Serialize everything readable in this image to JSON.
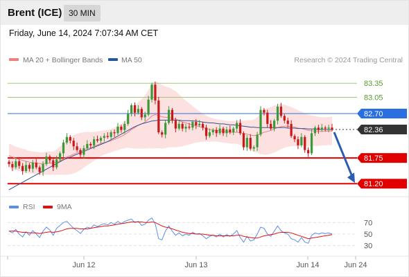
{
  "header": {
    "instrument": "Brent (ICE)",
    "timeframe": "30 MIN"
  },
  "timestamp": "Friday, June 14, 2024 7:07:34 AM CET",
  "legend": {
    "ma20_label": "MA 20 + Bollinger Bands",
    "ma50_label": "MA 50",
    "source": "Research © 2024 Trading Central"
  },
  "colors": {
    "ma20": "#f08080",
    "ma50": "#2a5599",
    "band_fill": "#fde0e0",
    "up_candle": "#3a9a3a",
    "down_candle": "#c81818",
    "resistance": "#9bcb76",
    "pivot": "#2a6fe0",
    "support": "#e00000",
    "last_price": "#333333",
    "rsi": "#5b8fe6",
    "rsi_ma": "#e01010"
  },
  "chart_data": {
    "type": "candlestick",
    "x_ticks": [
      "Jun 12",
      "Jun 13",
      "Jun 14",
      "Jun 24"
    ],
    "y_range": [
      81.04,
      83.62
    ],
    "levels": [
      {
        "label": "83.35",
        "value": 83.35,
        "kind": "resistance"
      },
      {
        "label": "83.05",
        "value": 83.05,
        "kind": "resistance"
      },
      {
        "label": "82.70",
        "value": 82.7,
        "kind": "pivot"
      },
      {
        "label": "82.36",
        "value": 82.36,
        "kind": "last"
      },
      {
        "label": "81.75",
        "value": 81.75,
        "kind": "support"
      },
      {
        "label": "81.20",
        "value": 81.2,
        "kind": "support"
      }
    ],
    "close": [
      81.62,
      81.55,
      81.68,
      81.58,
      81.47,
      81.6,
      81.52,
      81.65,
      81.55,
      81.45,
      81.62,
      81.78,
      81.7,
      81.55,
      81.72,
      81.85,
      82.08,
      82.2,
      82.12,
      82.0,
      81.92,
      81.82,
      81.96,
      82.05,
      82.02,
      82.15,
      82.12,
      82.18,
      82.22,
      82.2,
      82.3,
      82.28,
      82.42,
      82.35,
      82.48,
      82.7,
      82.88,
      82.72,
      82.8,
      82.62,
      82.68,
      83.0,
      83.32,
      82.98,
      82.3,
      82.25,
      82.5,
      82.78,
      82.55,
      82.38,
      82.48,
      82.38,
      82.42,
      82.4,
      82.52,
      82.45,
      82.48,
      82.4,
      82.22,
      82.3,
      82.35,
      82.28,
      82.38,
      82.28,
      82.36,
      82.3,
      82.38,
      82.5,
      82.28,
      81.98,
      82.18,
      81.95,
      81.98,
      82.25,
      82.78,
      82.72,
      82.48,
      82.38,
      82.55,
      82.85,
      82.65,
      82.55,
      82.48,
      82.22,
      82.15,
      82.02,
      82.2,
      81.92,
      81.85,
      82.28,
      82.4,
      82.35,
      82.4,
      82.38,
      82.4,
      82.36
    ],
    "ma20": [
      81.8,
      81.77,
      81.74,
      81.72,
      81.7,
      81.68,
      81.66,
      81.65,
      81.64,
      81.63,
      81.63,
      81.64,
      81.64,
      81.64,
      81.66,
      81.69,
      81.73,
      81.77,
      81.8,
      81.83,
      81.86,
      81.89,
      81.92,
      81.95,
      81.97,
      82.0,
      82.03,
      82.06,
      82.08,
      82.1,
      82.12,
      82.15,
      82.18,
      82.21,
      82.25,
      82.3,
      82.36,
      82.4,
      82.45,
      82.48,
      82.52,
      82.58,
      82.65,
      82.68,
      82.66,
      82.63,
      82.62,
      82.62,
      82.6,
      82.58,
      82.55,
      82.52,
      82.5,
      82.48,
      82.46,
      82.44,
      82.42,
      82.4,
      82.38,
      82.36,
      82.35,
      82.34,
      82.33,
      82.32,
      82.31,
      82.3,
      82.3,
      82.3,
      82.29,
      82.27,
      82.26,
      82.24,
      82.23,
      82.24,
      82.27,
      82.3,
      82.32,
      82.34,
      82.37,
      82.4,
      82.42,
      82.43,
      82.43,
      82.42,
      82.41,
      82.39,
      82.38,
      82.36,
      82.34,
      82.33,
      82.33,
      82.32,
      82.32,
      82.32,
      82.33,
      82.33
    ],
    "bollinger_width": [
      0.26,
      0.26,
      0.25,
      0.25,
      0.25,
      0.25,
      0.24,
      0.24,
      0.24,
      0.24,
      0.24,
      0.25,
      0.25,
      0.25,
      0.27,
      0.3,
      0.34,
      0.38,
      0.4,
      0.41,
      0.41,
      0.4,
      0.38,
      0.36,
      0.33,
      0.31,
      0.29,
      0.27,
      0.26,
      0.25,
      0.25,
      0.25,
      0.26,
      0.27,
      0.29,
      0.33,
      0.4,
      0.45,
      0.5,
      0.53,
      0.57,
      0.62,
      0.7,
      0.72,
      0.7,
      0.68,
      0.66,
      0.64,
      0.62,
      0.6,
      0.56,
      0.52,
      0.48,
      0.44,
      0.4,
      0.36,
      0.33,
      0.3,
      0.28,
      0.26,
      0.25,
      0.24,
      0.24,
      0.24,
      0.24,
      0.24,
      0.24,
      0.25,
      0.26,
      0.28,
      0.3,
      0.32,
      0.34,
      0.38,
      0.44,
      0.48,
      0.5,
      0.5,
      0.5,
      0.5,
      0.48,
      0.46,
      0.44,
      0.42,
      0.4,
      0.38,
      0.36,
      0.35,
      0.34,
      0.33,
      0.32,
      0.31,
      0.3,
      0.3,
      0.3,
      0.3
    ],
    "ma50": [
      81.07,
      81.11,
      81.15,
      81.19,
      81.23,
      81.27,
      81.31,
      81.35,
      81.39,
      81.43,
      81.47,
      81.51,
      81.55,
      81.59,
      81.63,
      81.67,
      81.71,
      81.74,
      81.77,
      81.8,
      81.83,
      81.86,
      81.89,
      81.92,
      81.95,
      81.98,
      82.01,
      82.04,
      82.07,
      82.1,
      82.14,
      82.18,
      82.22,
      82.26,
      82.3,
      82.34,
      82.38,
      82.42,
      82.45,
      82.48,
      82.5,
      82.52,
      82.54,
      82.55,
      82.56,
      82.56,
      82.56,
      82.56,
      82.56,
      82.56,
      82.56,
      82.55,
      82.55,
      82.55,
      82.54,
      82.54,
      82.53,
      82.52,
      82.51,
      82.5,
      82.5,
      82.49,
      82.48,
      82.48,
      82.47,
      82.46,
      82.46,
      82.45,
      82.44,
      82.43,
      82.42,
      82.41,
      82.41,
      82.4,
      82.4,
      82.4,
      82.4,
      82.4,
      82.4,
      82.4,
      82.4,
      82.4,
      82.39,
      82.39,
      82.39,
      82.38,
      82.38,
      82.38,
      82.37,
      82.37,
      82.37,
      82.36,
      82.36,
      82.36,
      82.36,
      82.36
    ],
    "forecast": {
      "from": 82.36,
      "to": 81.2
    },
    "rsi_panel": {
      "legend": [
        "RSI",
        "9MA"
      ],
      "ticks": [
        {
          "label": "70",
          "value": 70
        },
        {
          "label": "50",
          "value": 50
        },
        {
          "label": "30",
          "value": 30
        }
      ],
      "y_range": [
        20,
        80
      ],
      "rsi": [
        55,
        52,
        58,
        50,
        45,
        54,
        48,
        56,
        50,
        44,
        55,
        62,
        57,
        48,
        60,
        65,
        70,
        72,
        66,
        60,
        56,
        51,
        58,
        62,
        60,
        66,
        63,
        66,
        68,
        66,
        70,
        67,
        72,
        68,
        72,
        74,
        76,
        70,
        72,
        65,
        67,
        74,
        78,
        68,
        42,
        40,
        55,
        64,
        55,
        48,
        52,
        47,
        50,
        48,
        53,
        50,
        51,
        47,
        42,
        46,
        48,
        45,
        50,
        45,
        49,
        46,
        50,
        56,
        44,
        36,
        46,
        38,
        40,
        50,
        62,
        60,
        50,
        46,
        55,
        64,
        56,
        52,
        50,
        42,
        40,
        36,
        44,
        36,
        34,
        48,
        52,
        50,
        52,
        51,
        52,
        50
      ],
      "rsi_ma": [
        55,
        55,
        55,
        54,
        53,
        53,
        52,
        52,
        52,
        51,
        52,
        53,
        54,
        53,
        54,
        55,
        57,
        59,
        60,
        60,
        60,
        59,
        59,
        59,
        60,
        61,
        62,
        63,
        64,
        64,
        65,
        66,
        67,
        68,
        69,
        70,
        71,
        71,
        71,
        71,
        70,
        70,
        71,
        70,
        67,
        64,
        62,
        61,
        59,
        57,
        55,
        53,
        52,
        51,
        51,
        50,
        50,
        50,
        49,
        48,
        48,
        47,
        47,
        47,
        47,
        47,
        47,
        48,
        48,
        46,
        45,
        44,
        43,
        43,
        45,
        47,
        48,
        49,
        50,
        52,
        53,
        53,
        53,
        52,
        50,
        48,
        46,
        44,
        42,
        43,
        44,
        45,
        46,
        47,
        48,
        49
      ]
    }
  }
}
